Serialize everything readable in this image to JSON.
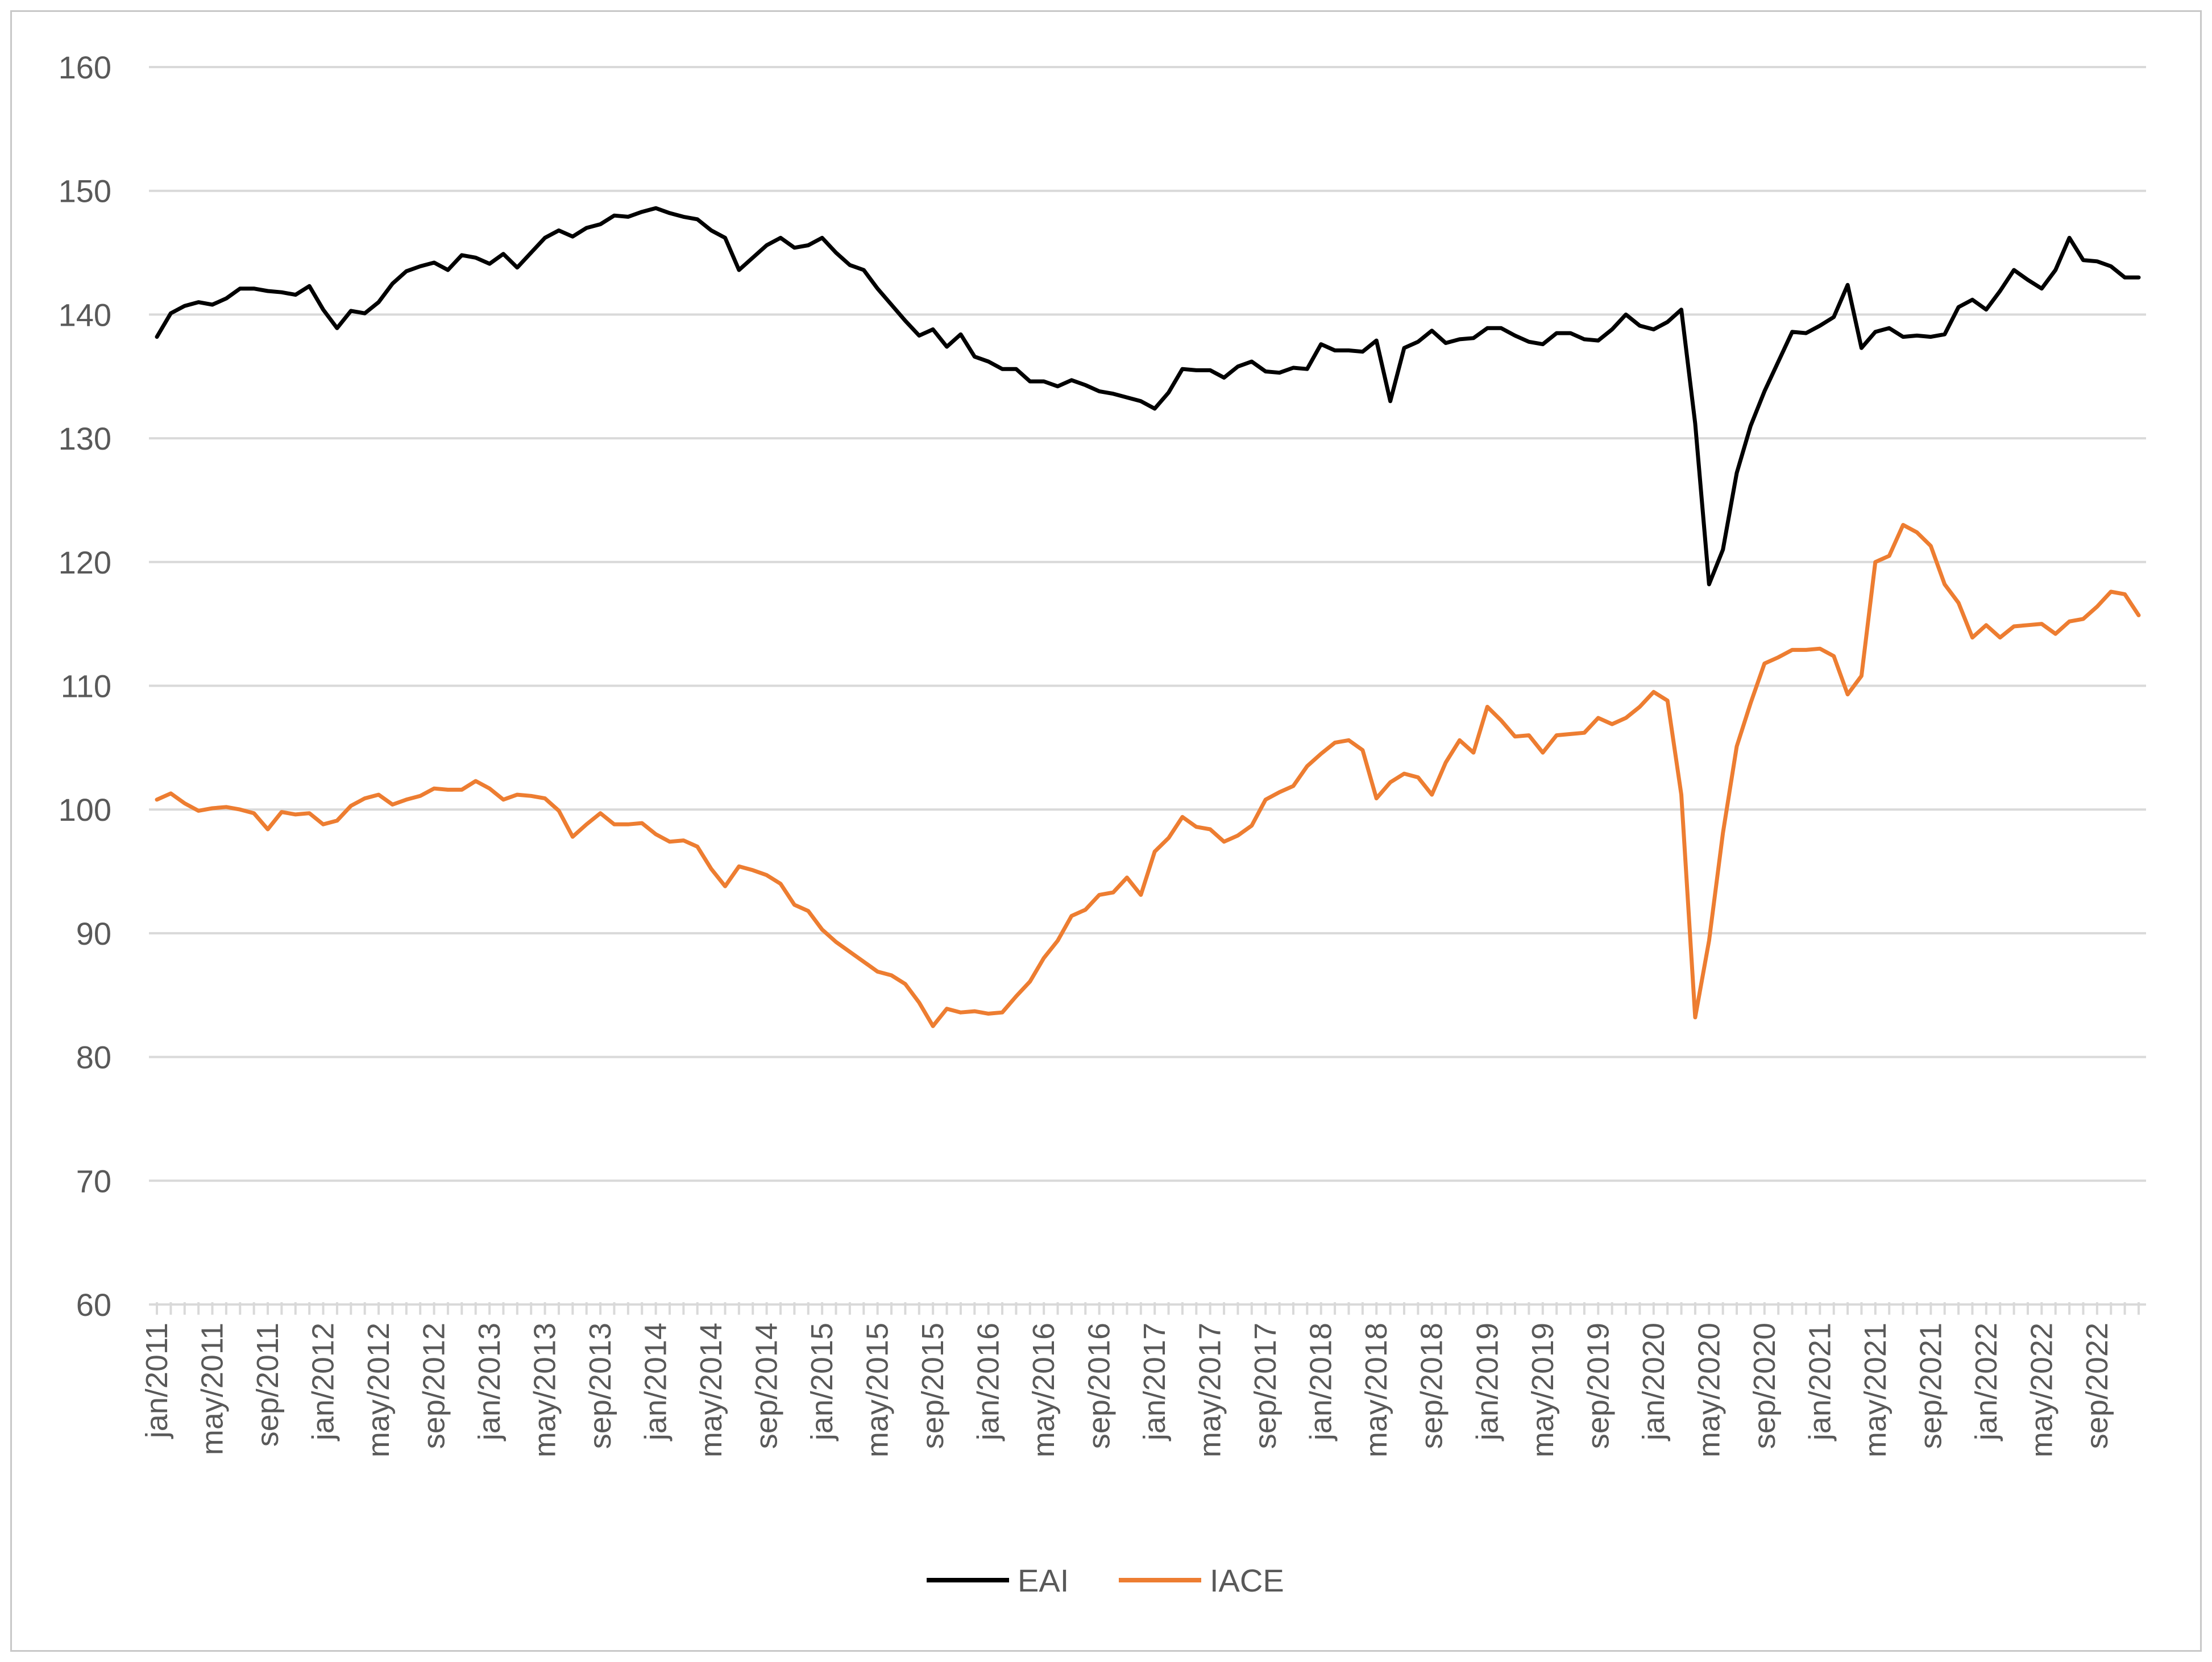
{
  "chart_data": {
    "type": "line",
    "title": "",
    "xlabel": "",
    "ylabel": "",
    "ylim": [
      60,
      160
    ],
    "yticks": [
      60,
      70,
      80,
      90,
      100,
      110,
      120,
      130,
      140,
      150,
      160
    ],
    "grid": "horizontal",
    "legend_position": "bottom",
    "x_tick_labels": [
      "jan/2011",
      "may/2011",
      "sep/2011",
      "jan/2012",
      "may/2012",
      "sep/2012",
      "jan/2013",
      "may/2013",
      "sep/2013",
      "jan/2014",
      "may/2014",
      "sep/2014",
      "jan/2015",
      "may/2015",
      "sep/2015",
      "jan/2016",
      "may/2016",
      "sep/2016",
      "jan/2017",
      "may/2017",
      "sep/2017",
      "jan/2018",
      "may/2018",
      "sep/2018",
      "jan/2019",
      "may/2019",
      "sep/2019",
      "jan/2020",
      "may/2020",
      "sep/2020",
      "jan/2021",
      "may/2021",
      "sep/2021",
      "jan/2022",
      "may/2022",
      "sep/2022"
    ],
    "x_start": "jan/2011",
    "x_end": "dec/2022",
    "series": [
      {
        "name": "EAI",
        "color": "#000000",
        "values": [
          138.2,
          140.1,
          140.7,
          141.0,
          140.8,
          141.3,
          142.1,
          142.1,
          141.9,
          141.8,
          141.6,
          142.3,
          140.4,
          138.9,
          140.3,
          140.1,
          141.0,
          142.5,
          143.5,
          143.9,
          144.2,
          143.6,
          144.8,
          144.6,
          144.1,
          144.9,
          143.8,
          145.0,
          146.2,
          146.8,
          146.3,
          147.0,
          147.3,
          148.0,
          147.9,
          148.3,
          148.6,
          148.2,
          147.9,
          147.7,
          146.8,
          146.2,
          143.6,
          144.6,
          145.6,
          146.2,
          145.4,
          145.6,
          146.2,
          145.0,
          144.0,
          143.6,
          142.1,
          140.8,
          139.5,
          138.3,
          138.8,
          137.4,
          138.4,
          136.6,
          136.2,
          135.6,
          135.6,
          134.6,
          134.6,
          134.2,
          134.7,
          134.3,
          133.8,
          133.6,
          133.3,
          133.0,
          132.4,
          133.7,
          135.6,
          135.5,
          135.5,
          134.9,
          135.8,
          136.2,
          135.4,
          135.3,
          135.7,
          135.6,
          137.6,
          137.1,
          137.1,
          137.0,
          137.9,
          133.0,
          137.3,
          137.8,
          138.7,
          137.7,
          138.0,
          138.1,
          138.9,
          138.9,
          138.3,
          137.8,
          137.6,
          138.5,
          138.5,
          138.0,
          137.9,
          138.8,
          140.0,
          139.1,
          138.8,
          139.4,
          140.4,
          131.2,
          118.2,
          121.0,
          127.2,
          131.0,
          133.8,
          136.2,
          138.6,
          138.5,
          139.1,
          139.8,
          142.4,
          137.3,
          138.6,
          138.9,
          138.2,
          138.3,
          138.2,
          138.4,
          140.6,
          141.2,
          140.4,
          141.9,
          143.6,
          142.8,
          142.1,
          143.6,
          146.2,
          144.4,
          144.3,
          143.9,
          143.0,
          143.0
        ]
      },
      {
        "name": "IACE",
        "color": "#ed7d31",
        "values": [
          100.8,
          101.3,
          100.5,
          99.9,
          100.1,
          100.2,
          100.0,
          99.7,
          98.4,
          99.8,
          99.6,
          99.7,
          98.8,
          99.1,
          100.3,
          100.9,
          101.2,
          100.4,
          100.8,
          101.1,
          101.7,
          101.6,
          101.6,
          102.3,
          101.7,
          100.8,
          101.2,
          101.1,
          100.9,
          99.9,
          97.8,
          98.8,
          99.7,
          98.8,
          98.8,
          98.9,
          98.0,
          97.4,
          97.5,
          97.0,
          95.2,
          93.8,
          95.4,
          95.1,
          94.7,
          94.0,
          92.3,
          91.8,
          90.3,
          89.3,
          88.5,
          87.7,
          86.9,
          86.6,
          85.9,
          84.4,
          82.5,
          83.9,
          83.6,
          83.7,
          83.5,
          83.6,
          84.9,
          86.1,
          88.0,
          89.4,
          91.4,
          91.9,
          93.1,
          93.3,
          94.5,
          93.1,
          96.6,
          97.7,
          99.4,
          98.6,
          98.4,
          97.4,
          97.9,
          98.7,
          100.8,
          101.4,
          101.9,
          103.5,
          104.5,
          105.4,
          105.6,
          104.8,
          100.9,
          102.2,
          102.9,
          102.6,
          101.2,
          103.8,
          105.6,
          104.6,
          108.3,
          107.2,
          105.9,
          106.0,
          104.6,
          106.0,
          106.1,
          106.2,
          107.4,
          106.9,
          107.4,
          108.3,
          109.5,
          108.8,
          101.2,
          83.2,
          89.4,
          98.1,
          105.1,
          108.6,
          111.8,
          112.3,
          112.9,
          112.9,
          113.0,
          112.4,
          109.3,
          110.8,
          120.0,
          120.5,
          123.0,
          122.4,
          121.3,
          118.2,
          116.7,
          113.9,
          114.9,
          113.9,
          114.8,
          114.9,
          115.0,
          114.2,
          115.2,
          115.4,
          116.4,
          117.6,
          117.4,
          115.7
        ]
      }
    ]
  }
}
